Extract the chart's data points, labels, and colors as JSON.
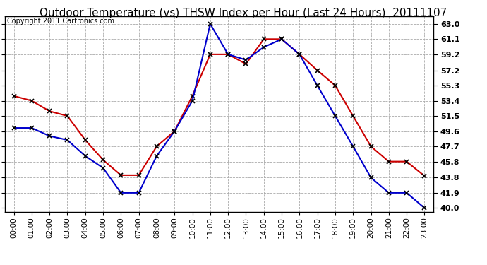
{
  "title": "Outdoor Temperature (vs) THSW Index per Hour (Last 24 Hours)  20111107",
  "copyright": "Copyright 2011 Cartronics.com",
  "hours": [
    "00:00",
    "01:00",
    "02:00",
    "03:00",
    "04:00",
    "05:00",
    "06:00",
    "07:00",
    "08:00",
    "09:00",
    "10:00",
    "11:00",
    "12:00",
    "13:00",
    "14:00",
    "15:00",
    "16:00",
    "17:00",
    "18:00",
    "19:00",
    "20:00",
    "21:00",
    "22:00",
    "23:00"
  ],
  "outdoor_temp": [
    54.0,
    53.4,
    52.1,
    51.5,
    48.5,
    46.0,
    44.1,
    44.1,
    47.7,
    49.6,
    54.0,
    59.2,
    59.2,
    58.0,
    61.1,
    61.1,
    59.2,
    57.2,
    55.3,
    51.5,
    47.7,
    45.8,
    45.8,
    44.0
  ],
  "thsw_index": [
    50.0,
    50.0,
    49.0,
    48.5,
    46.5,
    45.0,
    41.9,
    41.9,
    46.5,
    49.6,
    53.4,
    63.0,
    59.2,
    58.5,
    60.1,
    61.1,
    59.2,
    55.3,
    51.5,
    47.7,
    43.8,
    41.9,
    41.9,
    40.0
  ],
  "y_ticks": [
    40.0,
    41.9,
    43.8,
    45.8,
    47.7,
    49.6,
    51.5,
    53.4,
    55.3,
    57.2,
    59.2,
    61.1,
    63.0
  ],
  "ylim": [
    39.5,
    64.0
  ],
  "temp_color": "#cc0000",
  "thsw_color": "#0000cc",
  "bg_color": "#ffffff",
  "grid_color": "#aaaaaa",
  "title_fontsize": 11,
  "copyright_fontsize": 7,
  "marker": "x",
  "linewidth": 1.5,
  "markersize": 5,
  "marker_color": "#000000"
}
